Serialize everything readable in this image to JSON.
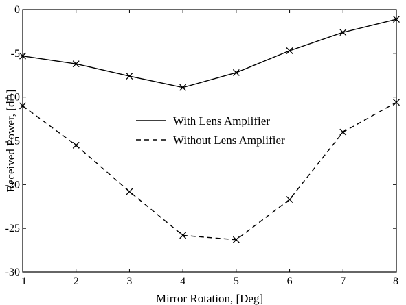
{
  "chart_data": {
    "type": "line",
    "title": "",
    "xlabel": "Mirror Rotation, [Deg]",
    "ylabel": "Received Power, [dB]",
    "xlim": [
      1,
      8
    ],
    "ylim": [
      -30,
      0
    ],
    "xticks": [
      "1",
      "2",
      "3",
      "4",
      "5",
      "6",
      "7",
      "8"
    ],
    "yticks": [
      "0",
      "-5",
      "-10",
      "-15",
      "-20",
      "-25",
      "-30"
    ],
    "grid": false,
    "legend_position": "center",
    "x": [
      1,
      2,
      3,
      4,
      5,
      6,
      7,
      8
    ],
    "series": [
      {
        "name": "With Lens Amplifier",
        "line_style": "solid",
        "marker": "x",
        "color": "#000000",
        "values": [
          -5.3,
          -6.2,
          -7.6,
          -8.9,
          -7.2,
          -4.7,
          -2.6,
          -1.1
        ]
      },
      {
        "name": "Without Lens Amplifier",
        "line_style": "dashed",
        "marker": "x",
        "color": "#000000",
        "values": [
          -11.0,
          -15.5,
          -20.8,
          -25.8,
          -26.3,
          -21.7,
          -14.0,
          -10.6
        ]
      }
    ]
  }
}
